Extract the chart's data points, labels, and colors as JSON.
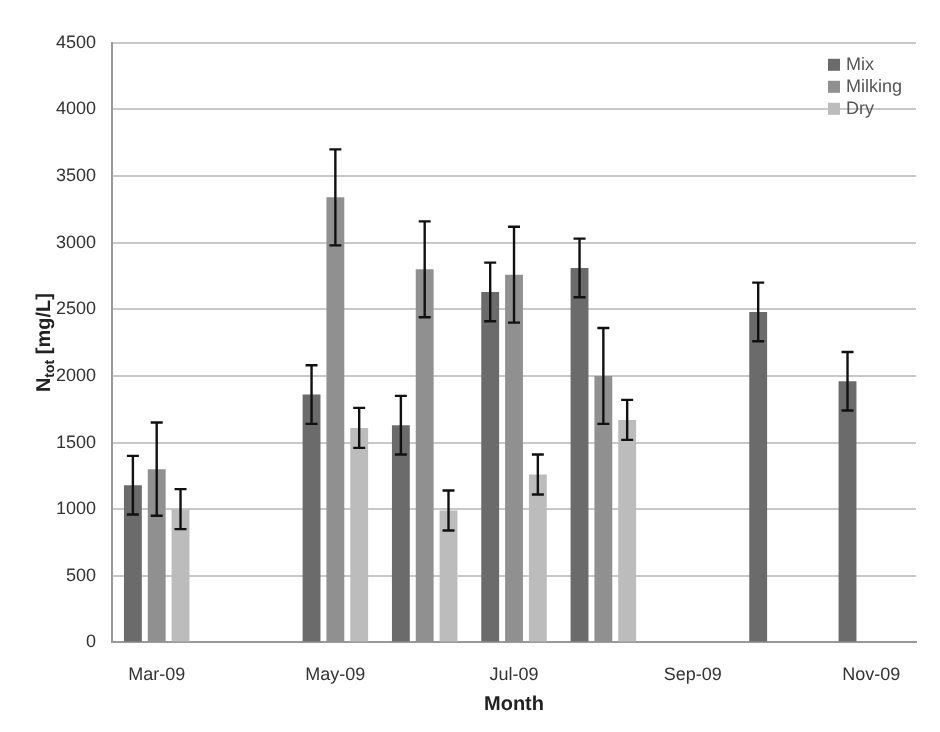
{
  "chart_data": {
    "type": "bar",
    "xlabel": "Month",
    "ylabel": "N$_{tot}$ [mg/L]",
    "categories": [
      "Mar-09",
      null,
      "May-09",
      null,
      "Jul-09",
      null,
      "Sep-09",
      null,
      "Nov-09"
    ],
    "series": [
      {
        "name": "Mix",
        "color": "#6b6b6b",
        "values": [
          1180,
          null,
          1860,
          1630,
          2630,
          2810,
          null,
          2480,
          1960
        ],
        "errors": [
          220,
          null,
          220,
          220,
          220,
          220,
          null,
          220,
          220
        ]
      },
      {
        "name": "Milking",
        "color": "#909090",
        "values": [
          1300,
          null,
          3340,
          2800,
          2760,
          2000,
          null,
          null,
          null
        ],
        "errors": [
          350,
          null,
          360,
          360,
          360,
          360,
          null,
          null,
          null
        ]
      },
      {
        "name": "Dry",
        "color": "#bcbcbc",
        "values": [
          1000,
          null,
          1610,
          990,
          1260,
          1670,
          null,
          null,
          null
        ],
        "errors": [
          150,
          null,
          150,
          150,
          150,
          150,
          null,
          null,
          null
        ]
      }
    ],
    "ylim": [
      0,
      4500
    ],
    "yticks": [
      0,
      500,
      1000,
      1500,
      2000,
      2500,
      3000,
      3500,
      4000,
      4500
    ],
    "grid": "y",
    "legend": "top right"
  }
}
